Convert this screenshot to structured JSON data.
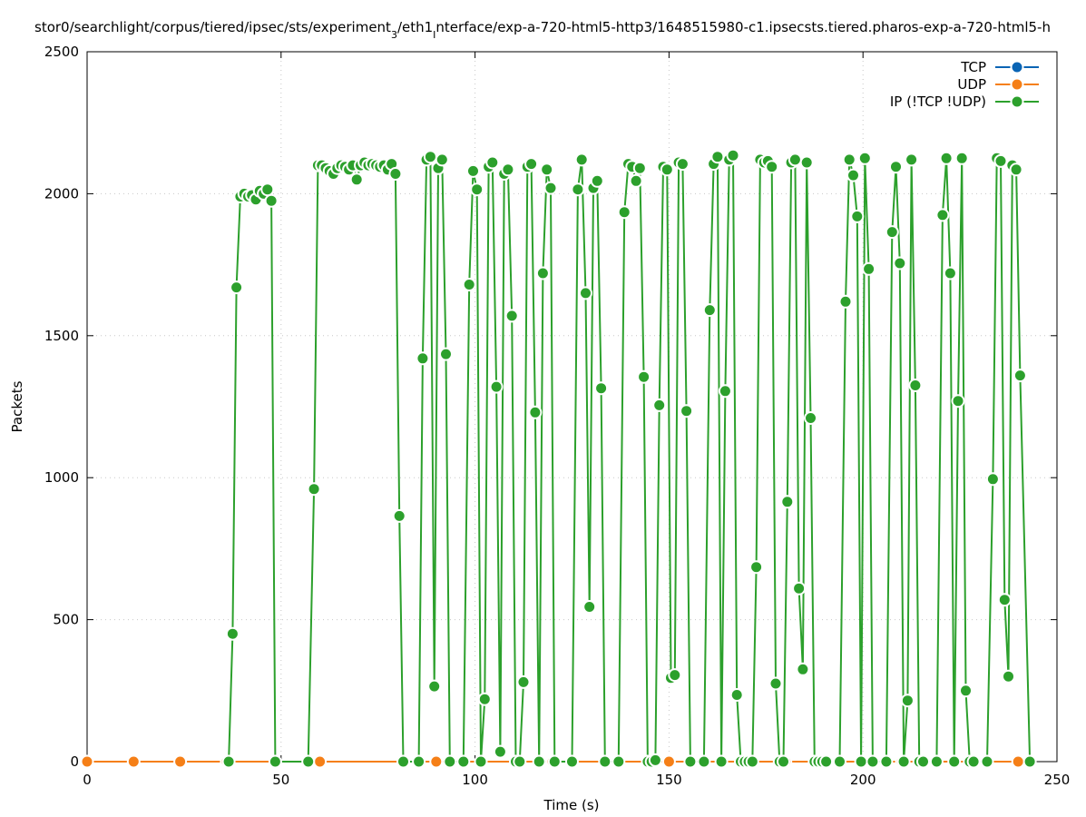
{
  "chart_data": {
    "type": "line",
    "title_parts": [
      "stor0/searchlight/corpus/tiered/ipsec/sts/experiment",
      "3",
      "/eth1",
      "I",
      "nterface/exp-a-720-html5-http3/1648515980-c1.ipsecsts.tiered.pharos-exp-a-720-html5-h"
    ],
    "xlabel": "Time (s)",
    "ylabel": "Packets",
    "xlim": [
      0,
      250
    ],
    "ylim": [
      0,
      2500
    ],
    "xticks": [
      0,
      50,
      100,
      150,
      200,
      250
    ],
    "yticks": [
      0,
      500,
      1000,
      1500,
      2000,
      2500
    ],
    "grid": true,
    "legend_position": "top-right",
    "series": [
      {
        "name": "TCP",
        "color": "#0a64b4",
        "x": [
          0,
          12,
          24,
          36
        ],
        "y": [
          0,
          0,
          0,
          0
        ]
      },
      {
        "name": "UDP",
        "color": "#f57f17",
        "x": [
          0,
          12,
          24,
          36,
          60,
          90,
          120,
          150,
          180,
          210,
          240
        ],
        "y": [
          0,
          0,
          0,
          0,
          0,
          0,
          0,
          0,
          0,
          0,
          0
        ]
      },
      {
        "name": "IP (!TCP  !UDP)",
        "color": "#2ca02c",
        "x": [
          36.5,
          37.5,
          38.5,
          39.5,
          40.5,
          41.5,
          42.5,
          43.5,
          44.5,
          45.5,
          46.5,
          47.5,
          48.5,
          57,
          58.5,
          59.5,
          60.5,
          61.5,
          62.5,
          63.5,
          64.5,
          65.5,
          66.5,
          67.5,
          68.5,
          69.5,
          70.5,
          71.5,
          72.5,
          73.5,
          74.5,
          75.5,
          76.5,
          77.5,
          78.5,
          79.5,
          80.5,
          81.5,
          85.5,
          86.5,
          87.5,
          88.5,
          89.5,
          90.5,
          91.5,
          92.5,
          93.5,
          97,
          98.5,
          99.5,
          100.5,
          101.5,
          102.5,
          103.5,
          104.5,
          105.5,
          106.5,
          107.5,
          108.5,
          109.5,
          110.5,
          111.5,
          112.5,
          113.5,
          114.5,
          115.5,
          116.5,
          117.5,
          118.5,
          119.5,
          120.5,
          125,
          126.5,
          127.5,
          128.5,
          129.5,
          130.5,
          131.5,
          132.5,
          133.5,
          137,
          138.5,
          139.5,
          140.5,
          141.5,
          142.5,
          143.5,
          144.5,
          145.5,
          146.5,
          147.5,
          148.5,
          149.5,
          150.5,
          151.5,
          152.5,
          153.5,
          154.5,
          155.5,
          159,
          160.5,
          161.5,
          162.5,
          163.5,
          164.5,
          165.5,
          166.5,
          167.5,
          168.5,
          169.5,
          170.5,
          171.5,
          172.5,
          173.5,
          174.5,
          175.5,
          176.5,
          177.5,
          178.5,
          179.5,
          180.5,
          181.5,
          182.5,
          183.5,
          184.5,
          185.5,
          186.5,
          187.5,
          188.5,
          189.5,
          190.5,
          194,
          195.5,
          196.5,
          197.5,
          198.5,
          199.5,
          200.5,
          201.5,
          202.5,
          206,
          207.5,
          208.5,
          209.5,
          210.5,
          211.5,
          212.5,
          213.5,
          214.5,
          215.5,
          219,
          220.5,
          221.5,
          222.5,
          223.5,
          224.5,
          225.5,
          226.5,
          227.5,
          228.5,
          232,
          233.5,
          234.5,
          235.5,
          236.5,
          237.5,
          238.5,
          239.5,
          240.5,
          243
        ],
        "y": [
          0,
          450,
          1670,
          1990,
          2000,
          1990,
          1995,
          1980,
          2010,
          2000,
          2015,
          1975,
          0,
          0,
          960,
          2100,
          2100,
          2090,
          2080,
          2070,
          2090,
          2100,
          2095,
          2085,
          2100,
          2050,
          2100,
          2110,
          2100,
          2105,
          2100,
          2095,
          2100,
          2085,
          2105,
          2070,
          865,
          0,
          0,
          1420,
          2120,
          2130,
          265,
          2090,
          2120,
          1435,
          0,
          0,
          1680,
          2080,
          2015,
          0,
          220,
          2095,
          2110,
          1320,
          35,
          2070,
          2085,
          1570,
          0,
          0,
          280,
          2095,
          2105,
          1230,
          0,
          1720,
          2085,
          2020,
          0,
          0,
          2015,
          2120,
          1650,
          545,
          2020,
          2045,
          1315,
          0,
          0,
          1935,
          2105,
          2095,
          2045,
          2090,
          1355,
          0,
          0,
          5,
          1255,
          2095,
          2085,
          295,
          305,
          2110,
          2105,
          1235,
          0,
          0,
          1590,
          2105,
          2130,
          0,
          1305,
          2120,
          2135,
          235,
          0,
          0,
          0,
          0,
          685,
          2120,
          2110,
          2115,
          2095,
          275,
          0,
          0,
          915,
          2110,
          2120,
          610,
          325,
          2110,
          1210,
          0,
          0,
          0,
          0,
          0,
          1620,
          2120,
          2065,
          1920,
          0,
          2125,
          1735,
          0,
          0,
          1865,
          2095,
          1755,
          0,
          215,
          2120,
          1325,
          0,
          0,
          0,
          1925,
          2125,
          1720,
          0,
          1270,
          2125,
          250,
          0,
          0,
          0,
          995,
          2125,
          2115,
          570,
          300,
          2100,
          2085,
          1360,
          0
        ]
      }
    ]
  }
}
